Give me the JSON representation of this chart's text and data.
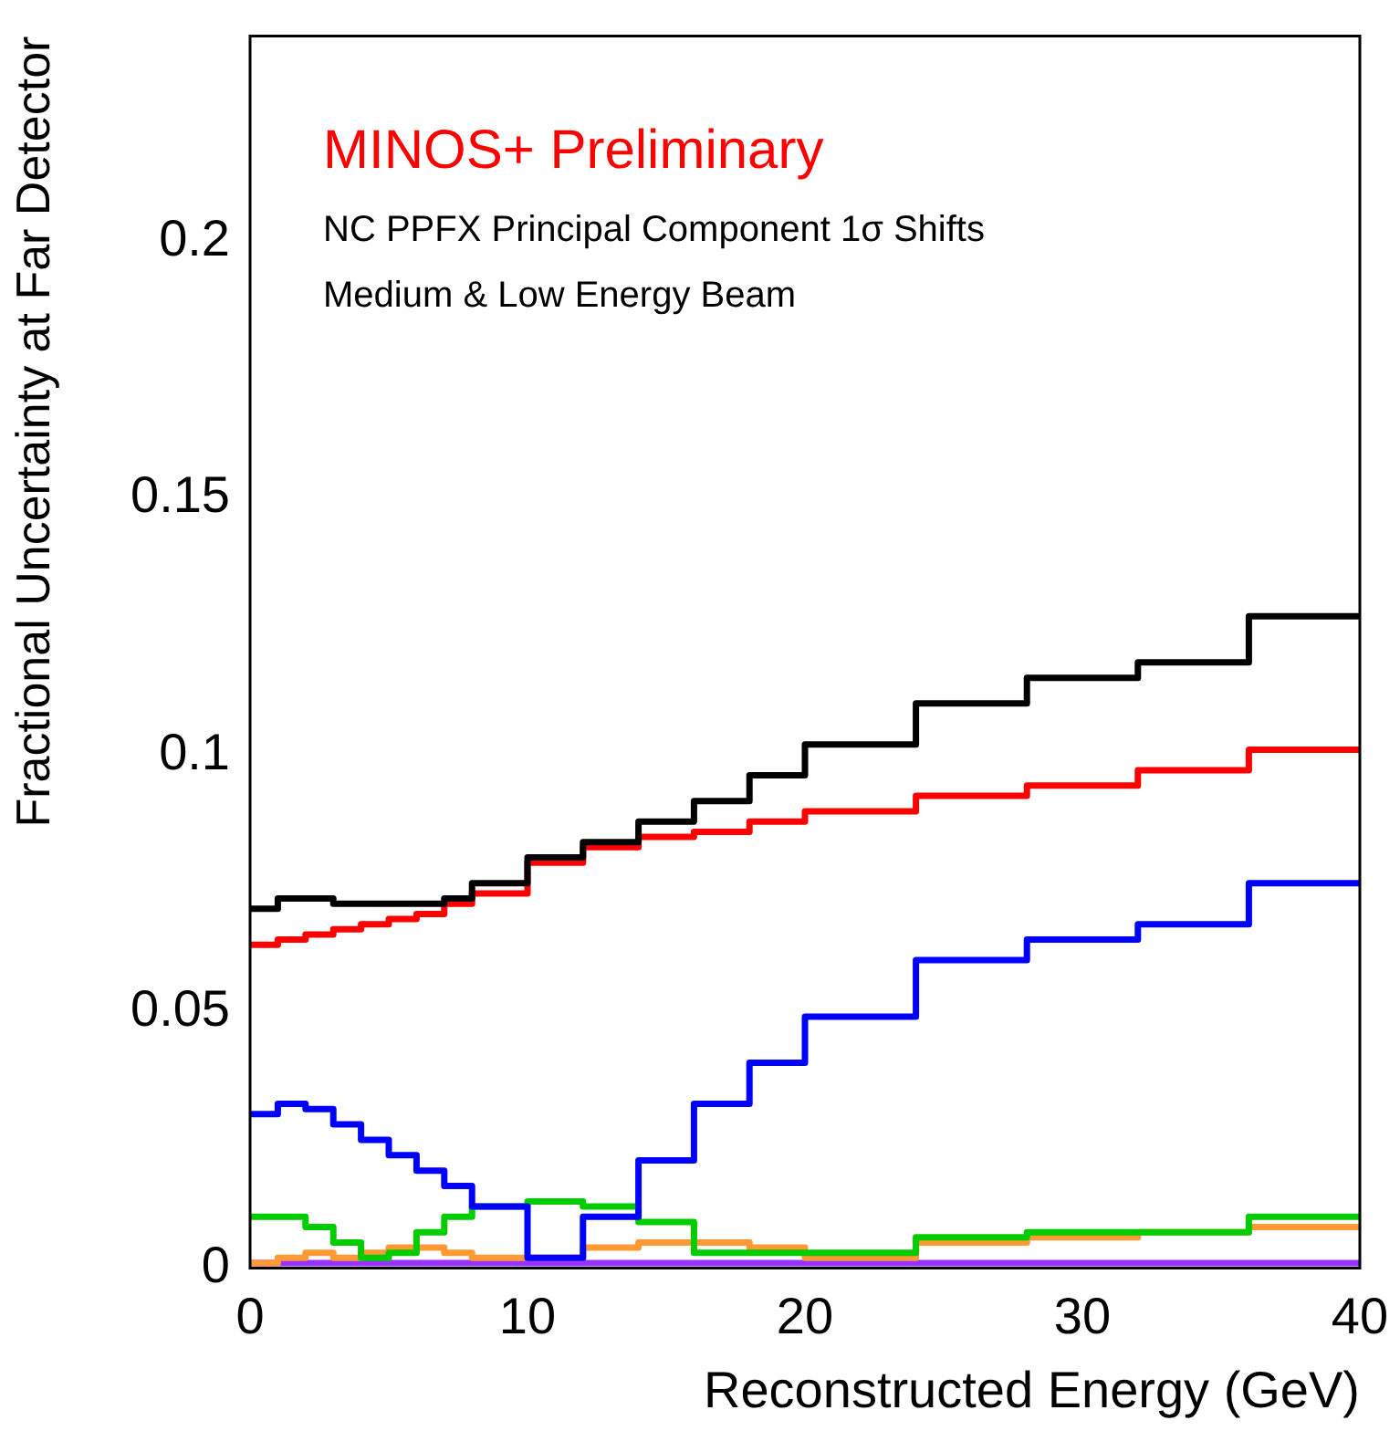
{
  "chart_data": {
    "type": "histogram",
    "title": "MINOS+ Preliminary",
    "xlabel": "Reconstructed Energy (GeV)",
    "ylabel": "Fractional Uncertainty at Far Detector",
    "annotations": [
      "NC PPFX Principal Component 1σ Shifts",
      "Medium & Low Energy Beam"
    ],
    "bins": [
      0,
      1,
      2,
      3,
      4,
      5,
      6,
      7,
      8,
      10,
      12,
      14,
      16,
      18,
      20,
      24,
      28,
      32,
      36,
      40
    ],
    "series": [
      {
        "color": "#000000",
        "values": [
          0.07,
          0.072,
          0.072,
          0.071,
          0.071,
          0.071,
          0.071,
          0.072,
          0.075,
          0.08,
          0.083,
          0.087,
          0.091,
          0.096,
          0.102,
          0.11,
          0.115,
          0.118,
          0.127
        ]
      },
      {
        "color": "#ff0000",
        "values": [
          0.063,
          0.064,
          0.065,
          0.066,
          0.067,
          0.068,
          0.069,
          0.071,
          0.073,
          0.079,
          0.082,
          0.084,
          0.085,
          0.087,
          0.089,
          0.092,
          0.094,
          0.097,
          0.101
        ]
      },
      {
        "color": "#0000ff",
        "values": [
          0.03,
          0.032,
          0.031,
          0.028,
          0.025,
          0.022,
          0.019,
          0.016,
          0.012,
          0.002,
          0.01,
          0.021,
          0.032,
          0.04,
          0.049,
          0.06,
          0.064,
          0.067,
          0.075
        ]
      },
      {
        "color": "#00cc00",
        "values": [
          0.01,
          0.01,
          0.008,
          0.005,
          0.002,
          0.003,
          0.007,
          0.01,
          0.012,
          0.013,
          0.012,
          0.009,
          0.003,
          0.003,
          0.003,
          0.006,
          0.007,
          0.007,
          0.01
        ]
      },
      {
        "color": "#ff9933",
        "values": [
          0.001,
          0.002,
          0.003,
          0.002,
          0.003,
          0.004,
          0.004,
          0.003,
          0.002,
          0.002,
          0.004,
          0.005,
          0.005,
          0.004,
          0.002,
          0.005,
          0.006,
          0.007,
          0.008
        ]
      },
      {
        "color": "#9933ff",
        "values": [
          0.001,
          0.001,
          0.001,
          0.001,
          0.001,
          0.001,
          0.001,
          0.001,
          0.001,
          0.001,
          0.001,
          0.001,
          0.001,
          0.001,
          0.001,
          0.001,
          0.001,
          0.001,
          0.001
        ]
      }
    ],
    "xlim": [
      0,
      40
    ],
    "xticks": [
      0,
      10,
      20,
      30,
      40
    ],
    "ylim": [
      0,
      0.24
    ],
    "yticks": [
      0,
      0.05,
      0.1,
      0.15,
      0.2
    ],
    "grid": false,
    "legend": false
  }
}
